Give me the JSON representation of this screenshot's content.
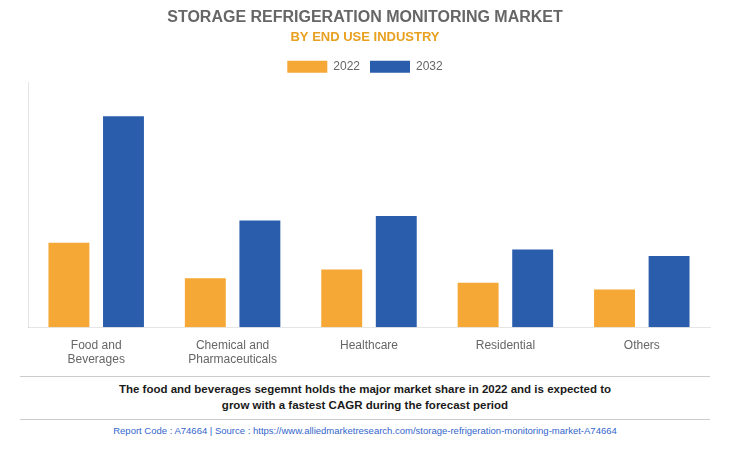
{
  "chart_data": {
    "type": "bar",
    "title": "STORAGE REFRIGERATION MONITORING MARKET",
    "subtitle": "BY END USE INDUSTRY",
    "categories": [
      "Food and\nBeverages",
      "Chemical and\nPharmaceuticals",
      "Healthcare",
      "Residential",
      "Others"
    ],
    "series": [
      {
        "name": "2022",
        "color": "#F5A835",
        "values": [
          3.8,
          2.2,
          2.6,
          2.0,
          1.7
        ]
      },
      {
        "name": "2032",
        "color": "#2B5DAD",
        "values": [
          9.5,
          4.8,
          5.0,
          3.5,
          3.2
        ]
      }
    ],
    "ylim": [
      0,
      11
    ],
    "grid": false,
    "legend": "top",
    "tick_labels": "x",
    "annotations": [
      "The food and beverages segemnt holds the major market share in 2022 and is expected to\ngrow with a fastest CAGR during the forecast period",
      "Report Code : A74664  |  Source : https://www.alliedmarketresearch.com/storage-refrigeration-monitoring-market-A74664"
    ]
  }
}
